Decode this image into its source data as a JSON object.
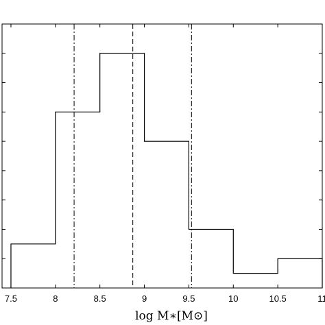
{
  "chart_data": {
    "type": "histogram",
    "title": "",
    "xlabel": "log M∗[M⊙]",
    "ylabel": "",
    "xlim": [
      7.4,
      11
    ],
    "ylim": [
      0,
      9
    ],
    "bin_edges": [
      7.5,
      8,
      8.5,
      9,
      9.5,
      10,
      10.5,
      11
    ],
    "counts": [
      1.5,
      6,
      8,
      5,
      2,
      0.5,
      1
    ],
    "x_ticks": [
      "7.5",
      "8",
      "8.5",
      "9",
      "9.5",
      "10",
      "10.5",
      "11"
    ],
    "y_tick_count": 9,
    "vertical_lines": [
      {
        "x": 8.21,
        "style": "dash-dot"
      },
      {
        "x": 8.87,
        "style": "dashed"
      },
      {
        "x": 9.53,
        "style": "dash-dot"
      }
    ],
    "grid": false,
    "colors": {
      "line": "#000000",
      "background": "#ffffff"
    }
  }
}
